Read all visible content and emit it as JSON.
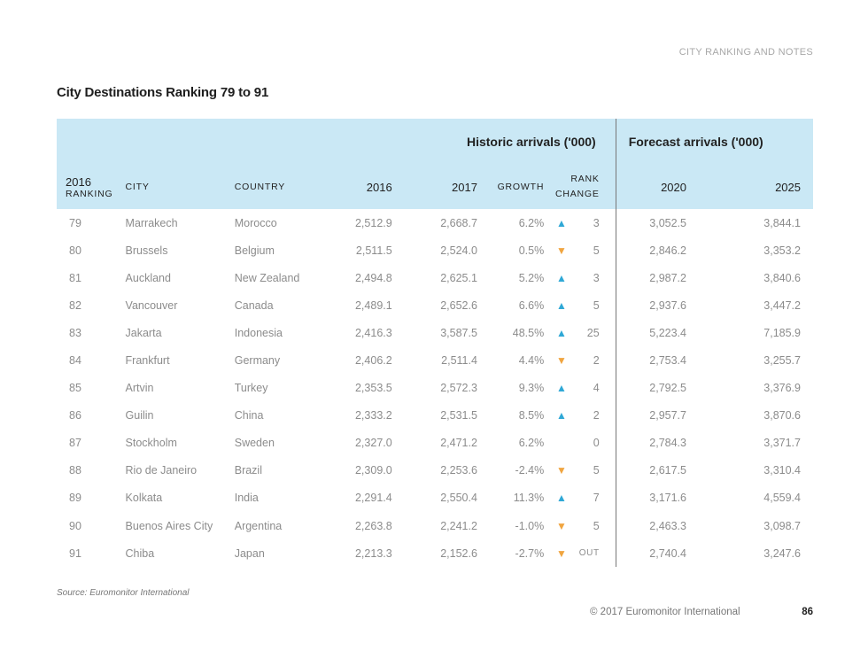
{
  "header": {
    "section_label": "CITY RANKING AND NOTES",
    "title": "City Destinations Ranking 79 to 91"
  },
  "table": {
    "groups": {
      "historic": "Historic arrivals ('000)",
      "forecast": "Forecast arrivals ('000)"
    },
    "columns": {
      "rank_year": "2016",
      "rank_label": "RANKING",
      "city": "CITY",
      "country": "COUNTRY",
      "y2016": "2016",
      "y2017": "2017",
      "growth": "GROWTH",
      "rank_change_1": "RANK",
      "rank_change_2": "CHANGE",
      "y2020": "2020",
      "y2025": "2025"
    },
    "rows": [
      {
        "rank": "79",
        "city": "Marrakech",
        "country": "Morocco",
        "y2016": "2,512.9",
        "y2017": "2,668.7",
        "growth": "6.2%",
        "dir": "up",
        "change": "3",
        "y2020": "3,052.5",
        "y2025": "3,844.1"
      },
      {
        "rank": "80",
        "city": "Brussels",
        "country": "Belgium",
        "y2016": "2,511.5",
        "y2017": "2,524.0",
        "growth": "0.5%",
        "dir": "down",
        "change": "5",
        "y2020": "2,846.2",
        "y2025": "3,353.2"
      },
      {
        "rank": "81",
        "city": "Auckland",
        "country": "New Zealand",
        "y2016": "2,494.8",
        "y2017": "2,625.1",
        "growth": "5.2%",
        "dir": "up",
        "change": "3",
        "y2020": "2,987.2",
        "y2025": "3,840.6"
      },
      {
        "rank": "82",
        "city": "Vancouver",
        "country": "Canada",
        "y2016": "2,489.1",
        "y2017": "2,652.6",
        "growth": "6.6%",
        "dir": "up",
        "change": "5",
        "y2020": "2,937.6",
        "y2025": "3,447.2"
      },
      {
        "rank": "83",
        "city": "Jakarta",
        "country": "Indonesia",
        "y2016": "2,416.3",
        "y2017": "3,587.5",
        "growth": "48.5%",
        "dir": "up",
        "change": "25",
        "y2020": "5,223.4",
        "y2025": "7,185.9"
      },
      {
        "rank": "84",
        "city": "Frankfurt",
        "country": "Germany",
        "y2016": "2,406.2",
        "y2017": "2,511.4",
        "growth": "4.4%",
        "dir": "down",
        "change": "2",
        "y2020": "2,753.4",
        "y2025": "3,255.7"
      },
      {
        "rank": "85",
        "city": "Artvin",
        "country": "Turkey",
        "y2016": "2,353.5",
        "y2017": "2,572.3",
        "growth": "9.3%",
        "dir": "up",
        "change": "4",
        "y2020": "2,792.5",
        "y2025": "3,376.9"
      },
      {
        "rank": "86",
        "city": "Guilin",
        "country": "China",
        "y2016": "2,333.2",
        "y2017": "2,531.5",
        "growth": "8.5%",
        "dir": "up",
        "change": "2",
        "y2020": "2,957.7",
        "y2025": "3,870.6"
      },
      {
        "rank": "87",
        "city": "Stockholm",
        "country": "Sweden",
        "y2016": "2,327.0",
        "y2017": "2,471.2",
        "growth": "6.2%",
        "dir": "none",
        "change": "0",
        "y2020": "2,784.3",
        "y2025": "3,371.7"
      },
      {
        "rank": "88",
        "city": "Rio de Janeiro",
        "country": "Brazil",
        "y2016": "2,309.0",
        "y2017": "2,253.6",
        "growth": "-2.4%",
        "dir": "down",
        "change": "5",
        "y2020": "2,617.5",
        "y2025": "3,310.4"
      },
      {
        "rank": "89",
        "city": "Kolkata",
        "country": "India",
        "y2016": "2,291.4",
        "y2017": "2,550.4",
        "growth": "11.3%",
        "dir": "up",
        "change": "7",
        "y2020": "3,171.6",
        "y2025": "4,559.4"
      },
      {
        "rank": "90",
        "city": "Buenos Aires City",
        "country": "Argentina",
        "y2016": "2,263.8",
        "y2017": "2,241.2",
        "growth": "-1.0%",
        "dir": "down",
        "change": "5",
        "y2020": "2,463.3",
        "y2025": "3,098.7"
      },
      {
        "rank": "91",
        "city": "Chiba",
        "country": "Japan",
        "y2016": "2,213.3",
        "y2017": "2,152.6",
        "growth": "-2.7%",
        "dir": "down",
        "change": "OUT",
        "y2020": "2,740.4",
        "y2025": "3,247.6"
      }
    ],
    "icons": {
      "up": "▲",
      "down": "▼",
      "none": ""
    },
    "colors": {
      "header_bg": "#cae8f5",
      "up": "#2fa8d6",
      "down": "#f0a540"
    }
  },
  "footer": {
    "source": "Source: Euromonitor International",
    "copyright": "© 2017 Euromonitor International",
    "page_number": "86"
  }
}
